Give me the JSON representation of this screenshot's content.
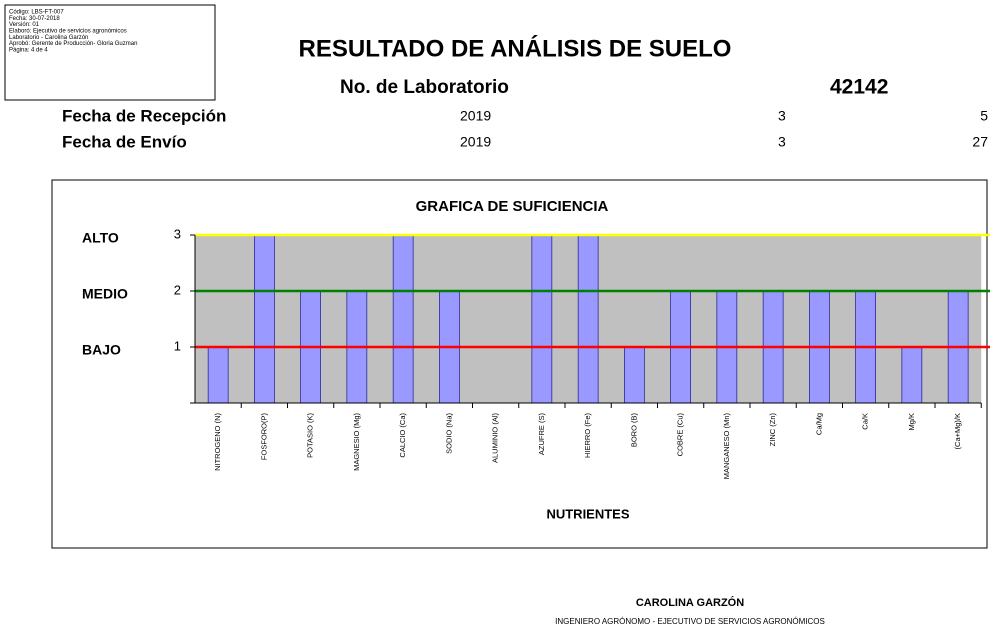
{
  "info_box": [
    "Código: LBS-FT-007",
    "Fecha: 30-07-2018",
    "Versión: 01",
    "Elaboró: Ejecutivo de servicios agronómicos",
    "Laboratorio - Carolina Garzón",
    "Aprobó: Gerente de Producción- Gloria Guzman",
    "Página: 4 de 4"
  ],
  "header": {
    "title": "RESULTADO DE ANÁLISIS DE SUELO",
    "lab_label": "No. de Laboratorio",
    "lab_number": "42142"
  },
  "dates": [
    {
      "label": "Fecha de Recepción",
      "year": "2019",
      "month": "3",
      "day": "5"
    },
    {
      "label": "Fecha de Envío",
      "year": "2019",
      "month": "3",
      "day": "27"
    }
  ],
  "chart_data": {
    "type": "bar",
    "title": "GRAFICA DE SUFICIENCIA",
    "x_label": "NUTRIENTES",
    "categories": [
      "NITROGENO (N)",
      "FOSFORO(P)",
      "POTASIO (K)",
      "MAGNESIO (Mg)",
      "CALCIO (Ca)",
      "SODIO (Na)",
      "ALUMINIO (Al)",
      "AZUFRE (S)",
      "HIERRO (Fe)",
      "BORO (B)",
      "COBRE (Cu)",
      "MANGANESO (Mn)",
      "ZINC (Zn)",
      "Ca/Mg",
      "Ca/K",
      "Mg/K",
      "(Ca+Mg)/K"
    ],
    "values": [
      1,
      3,
      2,
      2,
      3,
      2,
      0,
      3,
      3,
      1,
      2,
      2,
      2,
      2,
      2,
      1,
      2
    ],
    "color": "#9999ff",
    "ylim": [
      0,
      3
    ],
    "yticks": [
      1,
      2,
      3
    ],
    "level_labels": [
      "BAJO",
      "MEDIO",
      "ALTO"
    ],
    "grid_colors": [
      "#ff0000",
      "#008000",
      "#ffff00"
    ],
    "grid": true
  },
  "footer": {
    "name": "CAROLINA GARZÓN",
    "role": "INGENIERO AGRÓNOMO - EJECUTIVO DE SERVICIOS AGRONÓMICOS"
  }
}
